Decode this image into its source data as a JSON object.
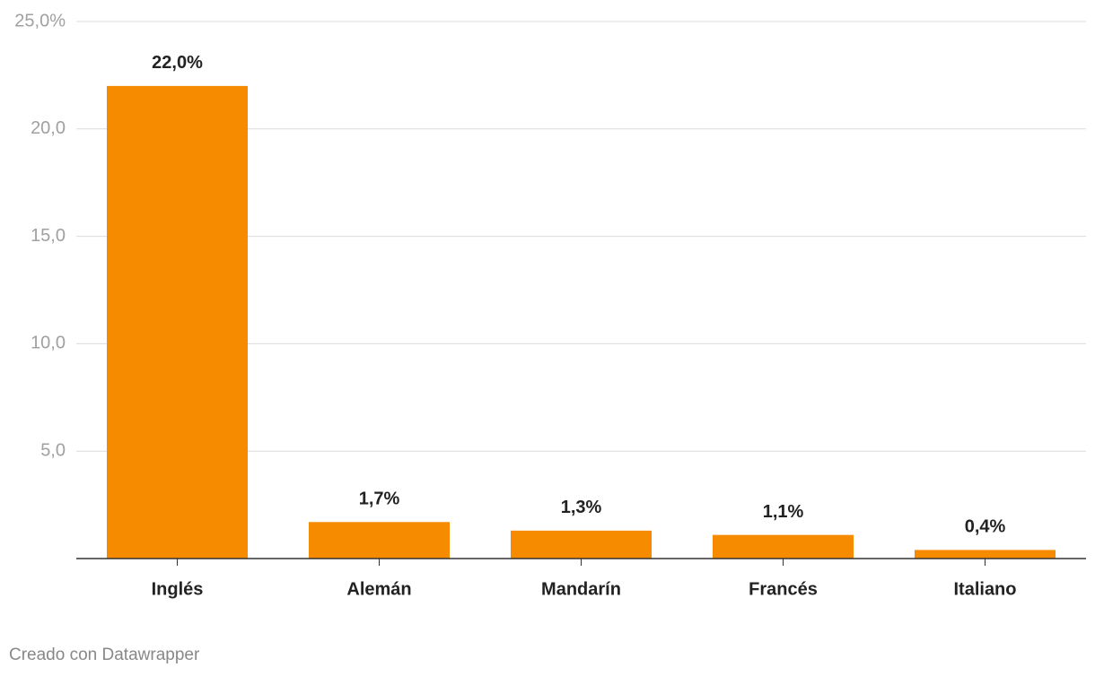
{
  "chart_data": {
    "type": "bar",
    "categories": [
      "Inglés",
      "Alemán",
      "Mandarín",
      "Francés",
      "Italiano"
    ],
    "values": [
      22,
      1.7,
      1.3,
      1.1,
      0.4
    ],
    "value_labels": [
      "22,0%",
      "1,7%",
      "1,3%",
      "1,1%",
      "0,4%"
    ],
    "color": "#f68b00",
    "ylim": [
      0,
      25
    ],
    "yticks": [
      {
        "value": 5,
        "label": "5,0"
      },
      {
        "value": 10,
        "label": "10,0"
      },
      {
        "value": 15,
        "label": "15,0"
      },
      {
        "value": 20,
        "label": "20,0"
      },
      {
        "value": 25,
        "label": "25,0%"
      }
    ],
    "grid": true,
    "credit": "Creado con Datawrapper"
  }
}
